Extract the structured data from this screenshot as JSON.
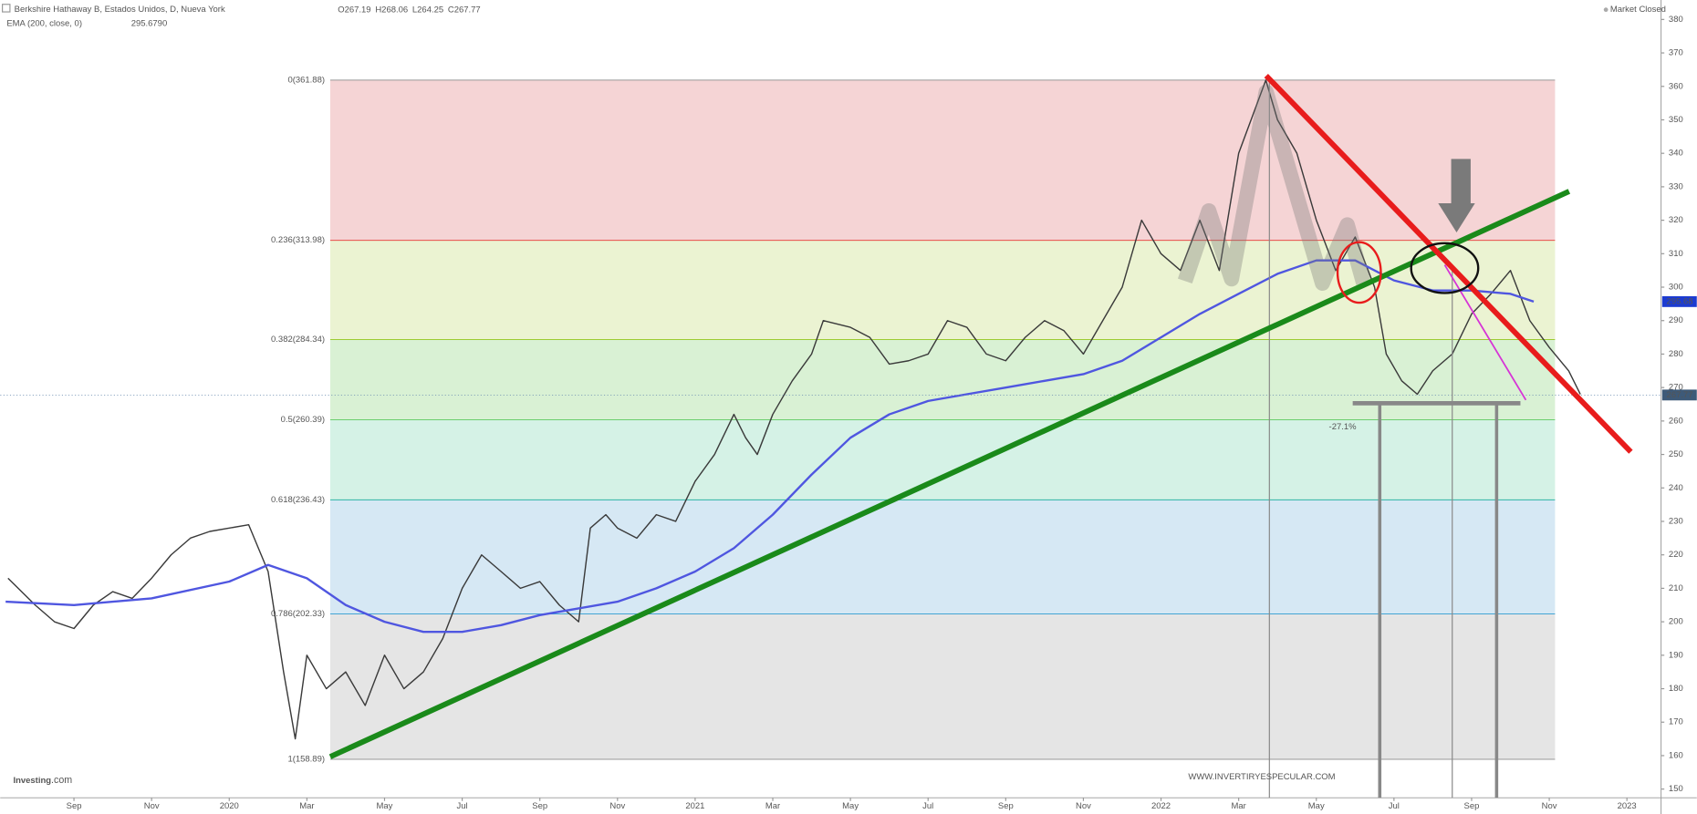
{
  "header": {
    "title": "Berkshire Hathaway B, Estados Unidos, D, Nueva York",
    "ohlc": [
      {
        "label": "O",
        "value": 267.19
      },
      {
        "label": "H",
        "value": 268.06
      },
      {
        "label": "L",
        "value": 264.25
      },
      {
        "label": "C",
        "value": 267.77
      }
    ],
    "indicator": "EMA (200, close, 0)",
    "indicator_value": {
      "value": 295.679,
      "label": "295.6790"
    },
    "status": "Market Closed"
  },
  "chart_data": {
    "type": "line",
    "xlim": [
      -1.76,
      40.88
    ],
    "xticks": [
      {
        "value": 0,
        "label": "Sep"
      },
      {
        "value": 2,
        "label": "Nov"
      },
      {
        "value": 4,
        "label": "2020"
      },
      {
        "value": 6,
        "label": "Mar"
      },
      {
        "value": 8,
        "label": "May"
      },
      {
        "value": 10,
        "label": "Jul"
      },
      {
        "value": 12,
        "label": "Sep"
      },
      {
        "value": 14,
        "label": "Nov"
      },
      {
        "value": 16,
        "label": "2021"
      },
      {
        "value": 18,
        "label": "Mar"
      },
      {
        "value": 20,
        "label": "May"
      },
      {
        "value": 22,
        "label": "Jul"
      },
      {
        "value": 24,
        "label": "Sep"
      },
      {
        "value": 26,
        "label": "Nov"
      },
      {
        "value": 28,
        "label": "2022"
      },
      {
        "value": 30,
        "label": "Mar"
      },
      {
        "value": 32,
        "label": "May"
      },
      {
        "value": 34,
        "label": "Jul"
      },
      {
        "value": 36,
        "label": "Sep"
      },
      {
        "value": 38,
        "label": "Nov"
      },
      {
        "value": 40,
        "label": "2023"
      }
    ],
    "ylim": [
      147.4,
      384.2
    ],
    "yticks": [
      150,
      160,
      170,
      180,
      190,
      200,
      210,
      220,
      230,
      240,
      250,
      260,
      270,
      280,
      290,
      300,
      310,
      320,
      330,
      340,
      350,
      360,
      370,
      380
    ],
    "series": [
      {
        "color": "#3a3a3a",
        "x": [
          -1.7,
          -1,
          -0.5,
          0,
          0.5,
          1,
          1.5,
          2,
          2.5,
          3,
          3.5,
          4,
          4.5,
          5,
          5.4,
          5.7,
          6,
          6.5,
          7,
          7.5,
          8,
          8.5,
          9,
          9.5,
          10,
          10.5,
          11,
          11.5,
          12,
          12.5,
          13,
          13.3,
          13.7,
          14,
          14.5,
          15,
          15.5,
          16,
          16.5,
          17,
          17.3,
          17.6,
          18,
          18.5,
          19,
          19.3,
          20,
          20.5,
          21,
          21.5,
          22,
          22.5,
          23,
          23.5,
          24,
          24.5,
          25,
          25.5,
          26,
          26.5,
          27,
          27.5,
          28,
          28.5,
          29,
          29.5,
          30,
          30.7,
          31,
          31.5,
          32,
          32.5,
          33,
          33.5,
          33.8,
          34.2,
          34.6,
          35,
          35.5,
          36,
          36.5,
          37,
          37.5,
          38,
          38.5,
          38.8
        ],
        "values": [
          213,
          205,
          200,
          198,
          205,
          209,
          207,
          213,
          220,
          225,
          227,
          228,
          229,
          215,
          185,
          165,
          190,
          180,
          185,
          175,
          190,
          180,
          185,
          195,
          210,
          220,
          215,
          210,
          212,
          205,
          200,
          228,
          232,
          228,
          225,
          232,
          230,
          242,
          250,
          262,
          255,
          250,
          262,
          272,
          280,
          290,
          288,
          285,
          277,
          278,
          280,
          290,
          288,
          280,
          278,
          285,
          290,
          287,
          280,
          290,
          300,
          320,
          310,
          305,
          320,
          305,
          340,
          361.88,
          350,
          340,
          320,
          305,
          315,
          300,
          280,
          272,
          268,
          275,
          280,
          292,
          298,
          305,
          290,
          282,
          275,
          268
        ]
      },
      {
        "name": "EMA (200, close, 0)",
        "color": "#4f56e0",
        "x": [
          -1.76,
          0,
          2,
          4,
          5,
          6,
          7,
          8,
          9,
          10,
          11,
          12,
          13,
          14,
          15,
          16,
          17,
          18,
          19,
          20,
          21,
          22,
          23,
          24,
          25,
          26,
          27,
          28,
          29,
          30,
          31,
          32,
          33,
          34,
          35,
          36,
          37,
          37.6
        ],
        "values": [
          206,
          205,
          207,
          212,
          217,
          213,
          205,
          200,
          197,
          197,
          199,
          202,
          204,
          206,
          210,
          215,
          222,
          232,
          244,
          255,
          262,
          266,
          268,
          270,
          272,
          274,
          278,
          285,
          292,
          298,
          304,
          308,
          308,
          302,
          299,
          299,
          298,
          295.68
        ]
      }
    ],
    "fib_levels": [
      {
        "value": 361.88,
        "label": "0(361.88)",
        "color": "#999999",
        "fill": "#f5d4d5"
      },
      {
        "value": 313.98,
        "label": "0.236(313.98)",
        "color": "#e53935",
        "fill": "#ebf3d2"
      },
      {
        "value": 284.34,
        "label": "0.382(284.34)",
        "color": "#9ccc33",
        "fill": "#d9f1d4"
      },
      {
        "value": 260.39,
        "label": "0.5(260.39)",
        "color": "#5dc85d",
        "fill": "#d5f2e6"
      },
      {
        "value": 236.43,
        "label": "0.618(236.43)",
        "color": "#2fb3a5",
        "fill": "#d6e8f4"
      },
      {
        "value": 202.33,
        "label": "0.786(202.33)",
        "color": "#2e9ad0",
        "fill": "#e5e5e5"
      },
      {
        "value": 158.89,
        "label": "1(158.89)",
        "color": "#999999"
      }
    ],
    "price_tags": [
      {
        "value": 295.68,
        "color": "#1c3bd1"
      },
      {
        "value": 267.77,
        "color": "#3e5a78"
      }
    ],
    "annotation": "-27.1%",
    "watermark": "WWW.INVERTIRYESPECULAR.COM",
    "logo": "Investing",
    "logo_suffix": ".com"
  }
}
